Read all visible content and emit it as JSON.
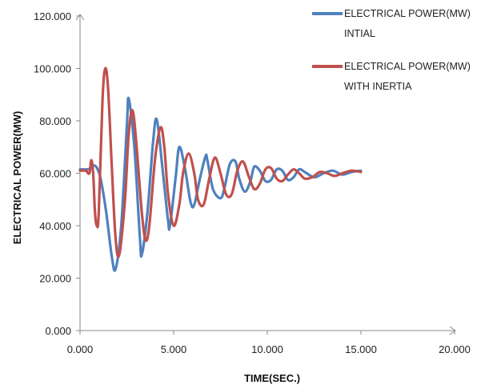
{
  "chart_data": {
    "type": "line",
    "xlabel": "TIME(SEC.)",
    "ylabel": "ELECTRICAL  POWER(MW)",
    "xlim": [
      0,
      20
    ],
    "ylim": [
      0,
      120
    ],
    "x_ticks": [
      "0.000",
      "5.000",
      "10.000",
      "15.000",
      "20.000"
    ],
    "y_ticks": [
      "0.000",
      "20.000",
      "40.000",
      "60.000",
      "80.000",
      "100.000",
      "120.000"
    ],
    "grid": false,
    "legend_position": "top-right",
    "series": [
      {
        "name_lines": [
          "ELECTRICAL POWER(MW)",
          "INTIAL"
        ],
        "color": "#4f81bd",
        "x": [
          0,
          0.4,
          0.6,
          0.75,
          0.9,
          1.1,
          1.4,
          1.7,
          1.9,
          2.2,
          2.5,
          2.6,
          2.9,
          3.2,
          3.3,
          3.6,
          3.9,
          4.1,
          4.4,
          4.7,
          4.8,
          5.1,
          5.3,
          5.6,
          5.9,
          6.1,
          6.4,
          6.7,
          6.8,
          7.1,
          7.5,
          7.7,
          8.0,
          8.3,
          8.5,
          8.8,
          9.1,
          9.3,
          9.6,
          9.9,
          10.2,
          10.5,
          10.8,
          11.1,
          11.4,
          11.7,
          12.0,
          12.5,
          13.0,
          13.5,
          14.0,
          14.5,
          15.0
        ],
        "y": [
          61.5,
          61.5,
          62.0,
          63.0,
          62.0,
          58.0,
          45.0,
          28.0,
          23.5,
          40.0,
          78.0,
          88.5,
          70.0,
          35.0,
          29.0,
          45.0,
          72.0,
          80.5,
          62.0,
          42.0,
          40.0,
          58.0,
          70.0,
          62.0,
          49.0,
          48.0,
          58.0,
          66.5,
          65.0,
          54.0,
          50.5,
          54.0,
          63.5,
          64.5,
          58.0,
          53.0,
          57.0,
          62.5,
          61.0,
          57.0,
          57.5,
          61.5,
          61.0,
          57.5,
          58.5,
          61.5,
          60.5,
          58.5,
          60.0,
          61.0,
          59.5,
          60.5,
          61.0
        ]
      },
      {
        "name_lines": [
          "ELECTRICAL POWER(MW)",
          "WITH INERTIA"
        ],
        "color": "#c0504d",
        "x": [
          0,
          0.3,
          0.5,
          0.6,
          0.7,
          0.8,
          0.9,
          1.0,
          1.2,
          1.35,
          1.5,
          1.7,
          1.9,
          2.1,
          2.4,
          2.6,
          2.8,
          3.0,
          3.3,
          3.5,
          3.7,
          4.0,
          4.3,
          4.5,
          4.7,
          5.0,
          5.3,
          5.5,
          5.8,
          6.1,
          6.3,
          6.6,
          6.9,
          7.2,
          7.5,
          7.8,
          8.1,
          8.4,
          8.7,
          9.0,
          9.3,
          9.6,
          9.9,
          10.2,
          10.5,
          10.8,
          11.1,
          11.4,
          11.7,
          12.0,
          12.4,
          12.8,
          13.2,
          13.6,
          14.0,
          14.5,
          15.0
        ],
        "y": [
          61.0,
          61.0,
          60.0,
          65.0,
          60.0,
          45.0,
          40.0,
          45.0,
          88.0,
          100.0,
          92.0,
          62.0,
          35.0,
          29.0,
          50.0,
          75.0,
          84.0,
          72.0,
          45.0,
          34.5,
          40.0,
          65.0,
          77.5,
          70.0,
          52.0,
          40.0,
          48.0,
          60.0,
          67.5,
          60.0,
          50.0,
          48.0,
          58.0,
          66.0,
          60.0,
          52.0,
          52.0,
          61.0,
          64.5,
          59.0,
          54.0,
          56.0,
          61.5,
          62.0,
          58.0,
          57.0,
          59.5,
          61.5,
          60.0,
          58.0,
          58.5,
          60.5,
          60.0,
          59.0,
          60.0,
          61.0,
          60.5
        ]
      }
    ]
  }
}
